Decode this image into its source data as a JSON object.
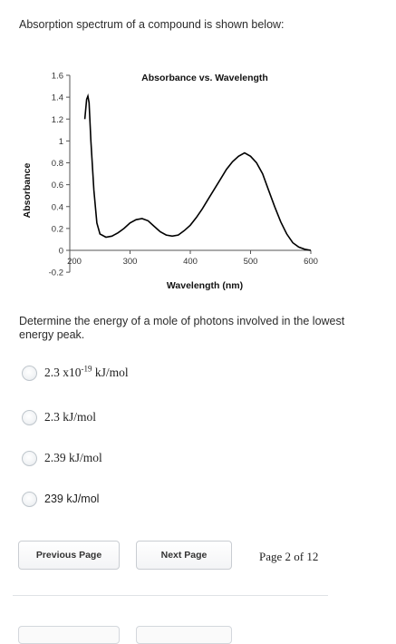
{
  "question": {
    "intro": "Absorption spectrum of a compound is shown below:",
    "prompt": "Determine the energy of a mole of photons involved in the lowest energy peak."
  },
  "chart_data": {
    "type": "line",
    "title": "Absorbance vs. Wavelength",
    "xlabel": "Wavelength (nm)",
    "ylabel": "Absorbance",
    "xlim": [
      200,
      600
    ],
    "ylim": [
      -0.2,
      1.6
    ],
    "x_ticks": [
      "200",
      "300",
      "400",
      "500",
      "600"
    ],
    "y_ticks": [
      "-0.2",
      "0",
      "0.2",
      "0.4",
      "0.6",
      "0.8",
      "1",
      "1.2",
      "1.4",
      "1.6"
    ],
    "grid": false,
    "series": [
      {
        "x": [
          225,
          228,
          230,
          232,
          235,
          240,
          245,
          250,
          260,
          270,
          280,
          290,
          300,
          310,
          320,
          330,
          340,
          350,
          360,
          370,
          380,
          390,
          400,
          410,
          420,
          430,
          440,
          450,
          460,
          470,
          480,
          490,
          500,
          510,
          520,
          530,
          540,
          550,
          560,
          570,
          580,
          590,
          600
        ],
        "y": [
          1.2,
          1.38,
          1.41,
          1.35,
          1.0,
          0.55,
          0.25,
          0.15,
          0.12,
          0.13,
          0.16,
          0.2,
          0.25,
          0.28,
          0.29,
          0.27,
          0.22,
          0.17,
          0.14,
          0.13,
          0.14,
          0.18,
          0.23,
          0.3,
          0.38,
          0.47,
          0.56,
          0.65,
          0.74,
          0.81,
          0.86,
          0.89,
          0.86,
          0.8,
          0.7,
          0.55,
          0.4,
          0.26,
          0.15,
          0.07,
          0.03,
          0.01,
          0.0
        ]
      }
    ]
  },
  "options": [
    {
      "mantissa": "2.3 x10",
      "exponent": "-19",
      "unit": " kJ/mol"
    },
    {
      "label": "2.3 kJ/mol"
    },
    {
      "label": "2.39 kJ/mol"
    },
    {
      "label": "239 kJ/mol"
    }
  ],
  "nav": {
    "previous": "Previous Page",
    "next": "Next Page",
    "page_indicator": "Page 2 of 12"
  },
  "colors": {
    "text": "#222222",
    "curve": "#000000",
    "button_border": "#c9cdd2"
  }
}
